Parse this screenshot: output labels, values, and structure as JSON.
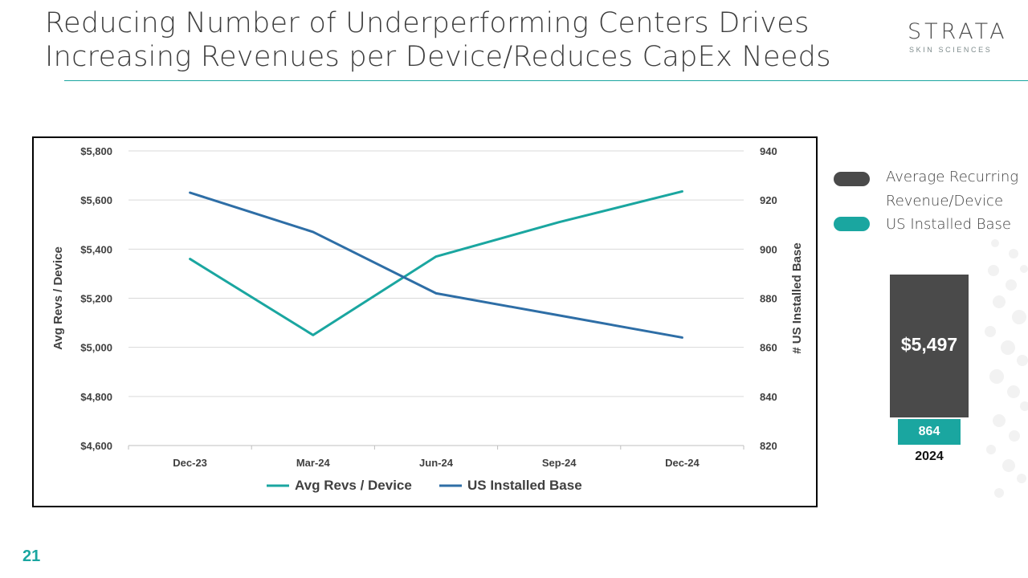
{
  "slide": {
    "title_lines": [
      "Reducing Number of Underperforming Centers Drives",
      "Increasing Revenues per Device/Reduces CapEx Needs"
    ],
    "logo_main": "STRATA",
    "logo_sub": "SKIN SCIENCES",
    "page_number": "21",
    "accent_color": "#1aa6a0"
  },
  "side_legend": [
    {
      "label": "Average Recurring Revenue/Device",
      "color": "#4a4a4a"
    },
    {
      "label": "US Installed Base",
      "color": "#1aa6a0"
    }
  ],
  "side_summary": {
    "revenue_value": "$5,497",
    "installed_value": "864",
    "year": "2024"
  },
  "chart_data": {
    "type": "line",
    "categories": [
      "Dec-23",
      "Mar-24",
      "Jun-24",
      "Sep-24",
      "Dec-24"
    ],
    "series": [
      {
        "name": "Avg Revs / Device",
        "axis": "left",
        "color": "#1aa6a0",
        "values": [
          5360,
          5050,
          5370,
          5510,
          5635
        ]
      },
      {
        "name": "US Installed Base",
        "axis": "right",
        "color": "#2e6ea6",
        "values": [
          923,
          907,
          882,
          873,
          864
        ]
      }
    ],
    "ylabel": "Avg Revs / Device",
    "y2label": "# US Installed Base",
    "ylim": [
      4600,
      5800
    ],
    "y2lim": [
      820,
      940
    ],
    "yticks": [
      "$4,600",
      "$4,800",
      "$5,000",
      "$5,200",
      "$5,400",
      "$5,600",
      "$5,800"
    ],
    "y2ticks": [
      "820",
      "840",
      "860",
      "880",
      "900",
      "920",
      "940"
    ],
    "grid": true,
    "legend_position": "bottom"
  }
}
